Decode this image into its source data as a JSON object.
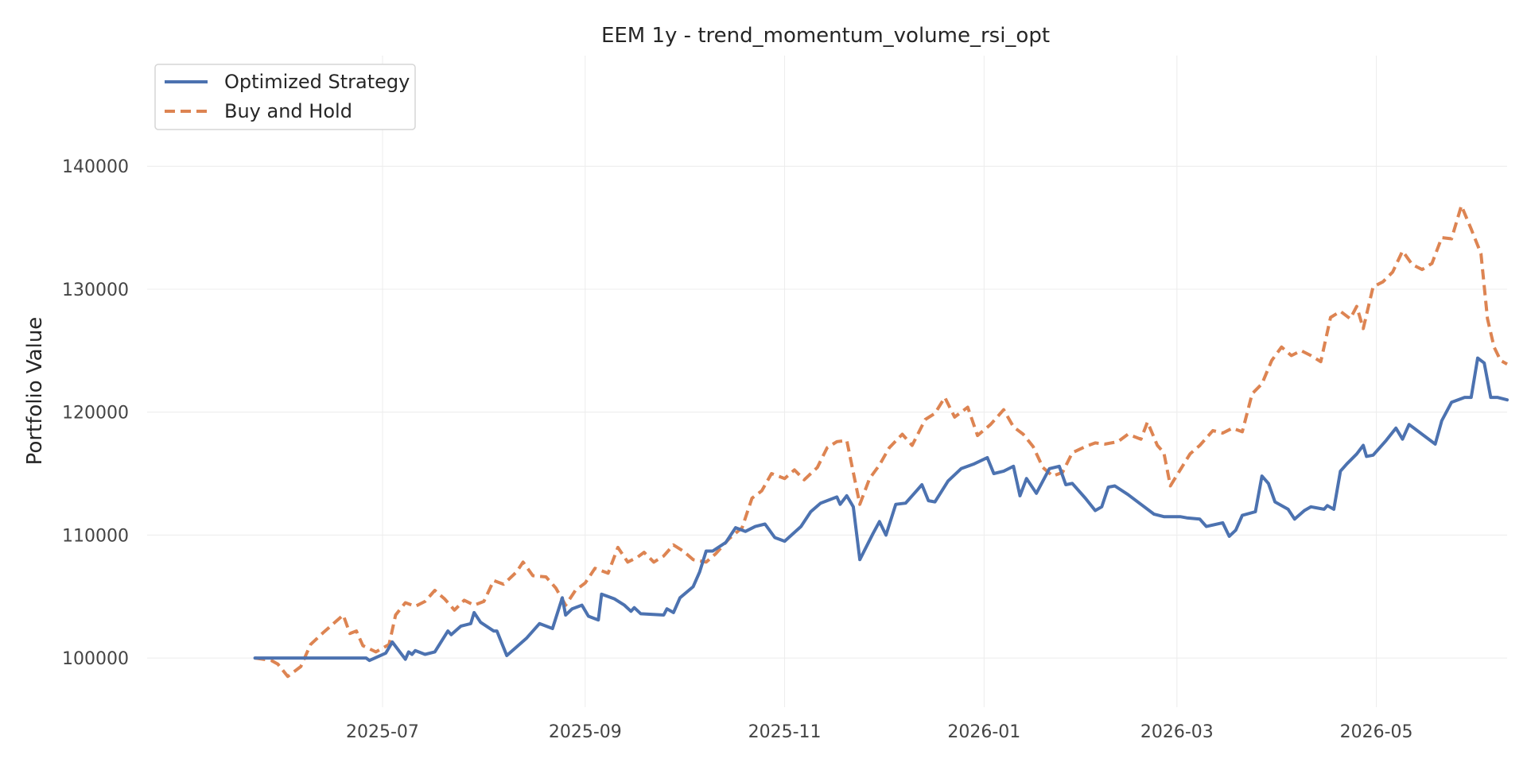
{
  "chart_data": {
    "type": "line",
    "title": "EEM 1y - trend_momentum_volume_rsi_opt",
    "xlabel": "",
    "ylabel": "Portfolio Value",
    "grid": true,
    "legend_position": "top-left",
    "xlim": [
      "2025-04-20",
      "2026-06-10"
    ],
    "ylim": [
      96000,
      149000
    ],
    "x_ticks": [
      "2025-07",
      "2025-09",
      "2025-11",
      "2026-01",
      "2026-03",
      "2026-05"
    ],
    "x_tick_dates": [
      "2025-07-01",
      "2025-09-01",
      "2025-11-01",
      "2026-01-01",
      "2026-03-01",
      "2026-05-01"
    ],
    "y_ticks": [
      100000,
      110000,
      120000,
      130000,
      140000
    ],
    "series": [
      {
        "name": "Optimized Strategy",
        "color": "#4c72b0",
        "style": "solid",
        "points": [
          [
            "2025-05-23",
            100000
          ],
          [
            "2025-06-26",
            100000
          ],
          [
            "2025-06-27",
            99800
          ],
          [
            "2025-07-02",
            100400
          ],
          [
            "2025-07-04",
            101300
          ],
          [
            "2025-07-08",
            99900
          ],
          [
            "2025-07-09",
            100500
          ],
          [
            "2025-07-10",
            100300
          ],
          [
            "2025-07-11",
            100600
          ],
          [
            "2025-07-14",
            100300
          ],
          [
            "2025-07-17",
            100500
          ],
          [
            "2025-07-21",
            102200
          ],
          [
            "2025-07-22",
            101900
          ],
          [
            "2025-07-25",
            102600
          ],
          [
            "2025-07-28",
            102800
          ],
          [
            "2025-07-29",
            103700
          ],
          [
            "2025-07-31",
            102900
          ],
          [
            "2025-08-04",
            102200
          ],
          [
            "2025-08-05",
            102200
          ],
          [
            "2025-08-08",
            100200
          ],
          [
            "2025-08-14",
            101600
          ],
          [
            "2025-08-18",
            102800
          ],
          [
            "2025-08-22",
            102400
          ],
          [
            "2025-08-25",
            104900
          ],
          [
            "2025-08-26",
            103500
          ],
          [
            "2025-08-28",
            104000
          ],
          [
            "2025-08-31",
            104300
          ],
          [
            "2025-09-02",
            103400
          ],
          [
            "2025-09-05",
            103100
          ],
          [
            "2025-09-06",
            105200
          ],
          [
            "2025-09-10",
            104800
          ],
          [
            "2025-09-13",
            104300
          ],
          [
            "2025-09-15",
            103800
          ],
          [
            "2025-09-16",
            104100
          ],
          [
            "2025-09-18",
            103600
          ],
          [
            "2025-09-25",
            103500
          ],
          [
            "2025-09-26",
            104000
          ],
          [
            "2025-09-28",
            103700
          ],
          [
            "2025-09-30",
            104900
          ],
          [
            "2025-10-04",
            105800
          ],
          [
            "2025-10-06",
            107000
          ],
          [
            "2025-10-08",
            108700
          ],
          [
            "2025-10-10",
            108700
          ],
          [
            "2025-10-14",
            109400
          ],
          [
            "2025-10-17",
            110600
          ],
          [
            "2025-10-20",
            110300
          ],
          [
            "2025-10-23",
            110700
          ],
          [
            "2025-10-26",
            110900
          ],
          [
            "2025-10-29",
            109800
          ],
          [
            "2025-11-01",
            109500
          ],
          [
            "2025-11-06",
            110700
          ],
          [
            "2025-11-09",
            111900
          ],
          [
            "2025-11-12",
            112600
          ],
          [
            "2025-11-17",
            113100
          ],
          [
            "2025-11-18",
            112500
          ],
          [
            "2025-11-20",
            113200
          ],
          [
            "2025-11-22",
            112300
          ],
          [
            "2025-11-24",
            108000
          ],
          [
            "2025-11-28",
            110100
          ],
          [
            "2025-11-30",
            111100
          ],
          [
            "2025-12-02",
            110000
          ],
          [
            "2025-12-05",
            112500
          ],
          [
            "2025-12-08",
            112600
          ],
          [
            "2025-12-10",
            113200
          ],
          [
            "2025-12-13",
            114100
          ],
          [
            "2025-12-15",
            112800
          ],
          [
            "2025-12-17",
            112700
          ],
          [
            "2025-12-21",
            114400
          ],
          [
            "2025-12-25",
            115400
          ],
          [
            "2025-12-29",
            115800
          ],
          [
            "2026-01-02",
            116300
          ],
          [
            "2026-01-04",
            115000
          ],
          [
            "2026-01-07",
            115200
          ],
          [
            "2026-01-10",
            115600
          ],
          [
            "2026-01-12",
            113200
          ],
          [
            "2026-01-14",
            114600
          ],
          [
            "2026-01-17",
            113400
          ],
          [
            "2026-01-21",
            115400
          ],
          [
            "2026-01-24",
            115600
          ],
          [
            "2026-01-26",
            114100
          ],
          [
            "2026-01-28",
            114200
          ],
          [
            "2026-02-01",
            113000
          ],
          [
            "2026-02-04",
            112000
          ],
          [
            "2026-02-06",
            112300
          ],
          [
            "2026-02-08",
            113900
          ],
          [
            "2026-02-10",
            114000
          ],
          [
            "2026-02-14",
            113300
          ],
          [
            "2026-02-18",
            112500
          ],
          [
            "2026-02-22",
            111700
          ],
          [
            "2026-02-25",
            111500
          ],
          [
            "2026-03-02",
            111500
          ],
          [
            "2026-03-04",
            111400
          ],
          [
            "2026-03-08",
            111300
          ],
          [
            "2026-03-10",
            110700
          ],
          [
            "2026-03-15",
            111000
          ],
          [
            "2026-03-17",
            109900
          ],
          [
            "2026-03-19",
            110400
          ],
          [
            "2026-03-21",
            111600
          ],
          [
            "2026-03-25",
            111900
          ],
          [
            "2026-03-27",
            114800
          ],
          [
            "2026-03-29",
            114200
          ],
          [
            "2026-03-31",
            112700
          ],
          [
            "2026-04-04",
            112100
          ],
          [
            "2026-04-06",
            111300
          ],
          [
            "2026-04-09",
            112000
          ],
          [
            "2026-04-11",
            112300
          ],
          [
            "2026-04-15",
            112100
          ],
          [
            "2026-04-16",
            112400
          ],
          [
            "2026-04-18",
            112100
          ],
          [
            "2026-04-20",
            115200
          ],
          [
            "2026-04-22",
            115800
          ],
          [
            "2026-04-25",
            116600
          ],
          [
            "2026-04-27",
            117300
          ],
          [
            "2026-04-28",
            116400
          ],
          [
            "2026-04-30",
            116500
          ],
          [
            "2026-05-04",
            117700
          ],
          [
            "2026-05-07",
            118700
          ],
          [
            "2026-05-09",
            117800
          ],
          [
            "2026-05-11",
            119000
          ],
          [
            "2026-05-15",
            118200
          ],
          [
            "2026-05-19",
            117400
          ],
          [
            "2026-05-21",
            119300
          ],
          [
            "2026-05-24",
            120800
          ],
          [
            "2026-05-28",
            121200
          ],
          [
            "2026-05-30",
            121200
          ],
          [
            "2026-06-01",
            124400
          ],
          [
            "2026-06-03",
            124000
          ],
          [
            "2026-06-05",
            121200
          ],
          [
            "2026-06-07",
            121200
          ],
          [
            "2026-06-10",
            121000
          ]
        ]
      },
      {
        "name": "Buy and Hold",
        "color": "#dd8452",
        "style": "dashed",
        "points": [
          [
            "2025-05-23",
            100000
          ],
          [
            "2025-05-28",
            99800
          ],
          [
            "2025-05-30",
            99500
          ],
          [
            "2025-06-02",
            98500
          ],
          [
            "2025-06-06",
            99300
          ],
          [
            "2025-06-09",
            101100
          ],
          [
            "2025-06-13",
            102100
          ],
          [
            "2025-06-16",
            102800
          ],
          [
            "2025-06-19",
            103500
          ],
          [
            "2025-06-21",
            102000
          ],
          [
            "2025-06-23",
            102200
          ],
          [
            "2025-06-25",
            101000
          ],
          [
            "2025-06-29",
            100500
          ],
          [
            "2025-07-03",
            101100
          ],
          [
            "2025-07-05",
            103500
          ],
          [
            "2025-07-08",
            104500
          ],
          [
            "2025-07-11",
            104200
          ],
          [
            "2025-07-14",
            104600
          ],
          [
            "2025-07-17",
            105500
          ],
          [
            "2025-07-20",
            104800
          ],
          [
            "2025-07-23",
            103900
          ],
          [
            "2025-07-26",
            104700
          ],
          [
            "2025-07-29",
            104300
          ],
          [
            "2025-08-01",
            104600
          ],
          [
            "2025-08-04",
            106300
          ],
          [
            "2025-08-07",
            106000
          ],
          [
            "2025-08-11",
            107000
          ],
          [
            "2025-08-13",
            107800
          ],
          [
            "2025-08-16",
            106700
          ],
          [
            "2025-08-20",
            106600
          ],
          [
            "2025-08-23",
            105700
          ],
          [
            "2025-08-26",
            104300
          ],
          [
            "2025-08-29",
            105500
          ],
          [
            "2025-09-01",
            106100
          ],
          [
            "2025-09-04",
            107300
          ],
          [
            "2025-09-08",
            106900
          ],
          [
            "2025-09-11",
            109000
          ],
          [
            "2025-09-14",
            107800
          ],
          [
            "2025-09-17",
            108200
          ],
          [
            "2025-09-19",
            108600
          ],
          [
            "2025-09-22",
            107800
          ],
          [
            "2025-09-25",
            108300
          ],
          [
            "2025-09-28",
            109200
          ],
          [
            "2025-10-01",
            108700
          ],
          [
            "2025-10-04",
            108000
          ],
          [
            "2025-10-08",
            107800
          ],
          [
            "2025-10-11",
            108500
          ],
          [
            "2025-10-15",
            109700
          ],
          [
            "2025-10-19",
            110600
          ],
          [
            "2025-10-22",
            113000
          ],
          [
            "2025-10-25",
            113600
          ],
          [
            "2025-10-28",
            115000
          ],
          [
            "2025-11-01",
            114600
          ],
          [
            "2025-11-04",
            115300
          ],
          [
            "2025-11-07",
            114500
          ],
          [
            "2025-11-11",
            115500
          ],
          [
            "2025-11-14",
            117100
          ],
          [
            "2025-11-17",
            117600
          ],
          [
            "2025-11-20",
            117700
          ],
          [
            "2025-11-24",
            112500
          ],
          [
            "2025-11-27",
            114600
          ],
          [
            "2025-11-30",
            115700
          ],
          [
            "2025-12-03",
            117100
          ],
          [
            "2025-12-07",
            118200
          ],
          [
            "2025-12-10",
            117300
          ],
          [
            "2025-12-14",
            119400
          ],
          [
            "2025-12-17",
            119900
          ],
          [
            "2025-12-20",
            121200
          ],
          [
            "2025-12-23",
            119600
          ],
          [
            "2025-12-27",
            120400
          ],
          [
            "2025-12-30",
            118100
          ],
          [
            "2026-01-03",
            119000
          ],
          [
            "2026-01-07",
            120200
          ],
          [
            "2026-01-10",
            118800
          ],
          [
            "2026-01-13",
            118200
          ],
          [
            "2026-01-16",
            117200
          ],
          [
            "2026-01-19",
            115500
          ],
          [
            "2026-01-22",
            114800
          ],
          [
            "2026-01-25",
            115100
          ],
          [
            "2026-01-28",
            116700
          ],
          [
            "2026-02-01",
            117200
          ],
          [
            "2026-02-04",
            117500
          ],
          [
            "2026-02-07",
            117400
          ],
          [
            "2026-02-11",
            117600
          ],
          [
            "2026-02-14",
            118200
          ],
          [
            "2026-02-18",
            117800
          ],
          [
            "2026-02-20",
            119200
          ],
          [
            "2026-02-23",
            117300
          ],
          [
            "2026-02-25",
            116700
          ],
          [
            "2026-02-27",
            114000
          ],
          [
            "2026-03-02",
            115300
          ],
          [
            "2026-03-05",
            116600
          ],
          [
            "2026-03-08",
            117300
          ],
          [
            "2026-03-12",
            118500
          ],
          [
            "2026-03-15",
            118300
          ],
          [
            "2026-03-18",
            118700
          ],
          [
            "2026-03-21",
            118400
          ],
          [
            "2026-03-24",
            121500
          ],
          [
            "2026-03-27",
            122300
          ],
          [
            "2026-03-30",
            124200
          ],
          [
            "2026-04-02",
            125300
          ],
          [
            "2026-04-05",
            124600
          ],
          [
            "2026-04-08",
            125000
          ],
          [
            "2026-04-11",
            124600
          ],
          [
            "2026-04-14",
            124100
          ],
          [
            "2026-04-17",
            127700
          ],
          [
            "2026-04-20",
            128200
          ],
          [
            "2026-04-23",
            127600
          ],
          [
            "2026-04-25",
            128600
          ],
          [
            "2026-04-27",
            126800
          ],
          [
            "2026-04-30",
            130200
          ],
          [
            "2026-05-03",
            130600
          ],
          [
            "2026-05-06",
            131400
          ],
          [
            "2026-05-09",
            133100
          ],
          [
            "2026-05-12",
            132000
          ],
          [
            "2026-05-15",
            131600
          ],
          [
            "2026-05-18",
            132100
          ],
          [
            "2026-05-21",
            134200
          ],
          [
            "2026-05-24",
            134100
          ],
          [
            "2026-05-27",
            136800
          ],
          [
            "2026-05-30",
            134900
          ],
          [
            "2026-06-02",
            132900
          ],
          [
            "2026-06-04",
            127600
          ],
          [
            "2026-06-06",
            125300
          ],
          [
            "2026-06-08",
            124200
          ],
          [
            "2026-06-10",
            123900
          ]
        ]
      }
    ]
  }
}
